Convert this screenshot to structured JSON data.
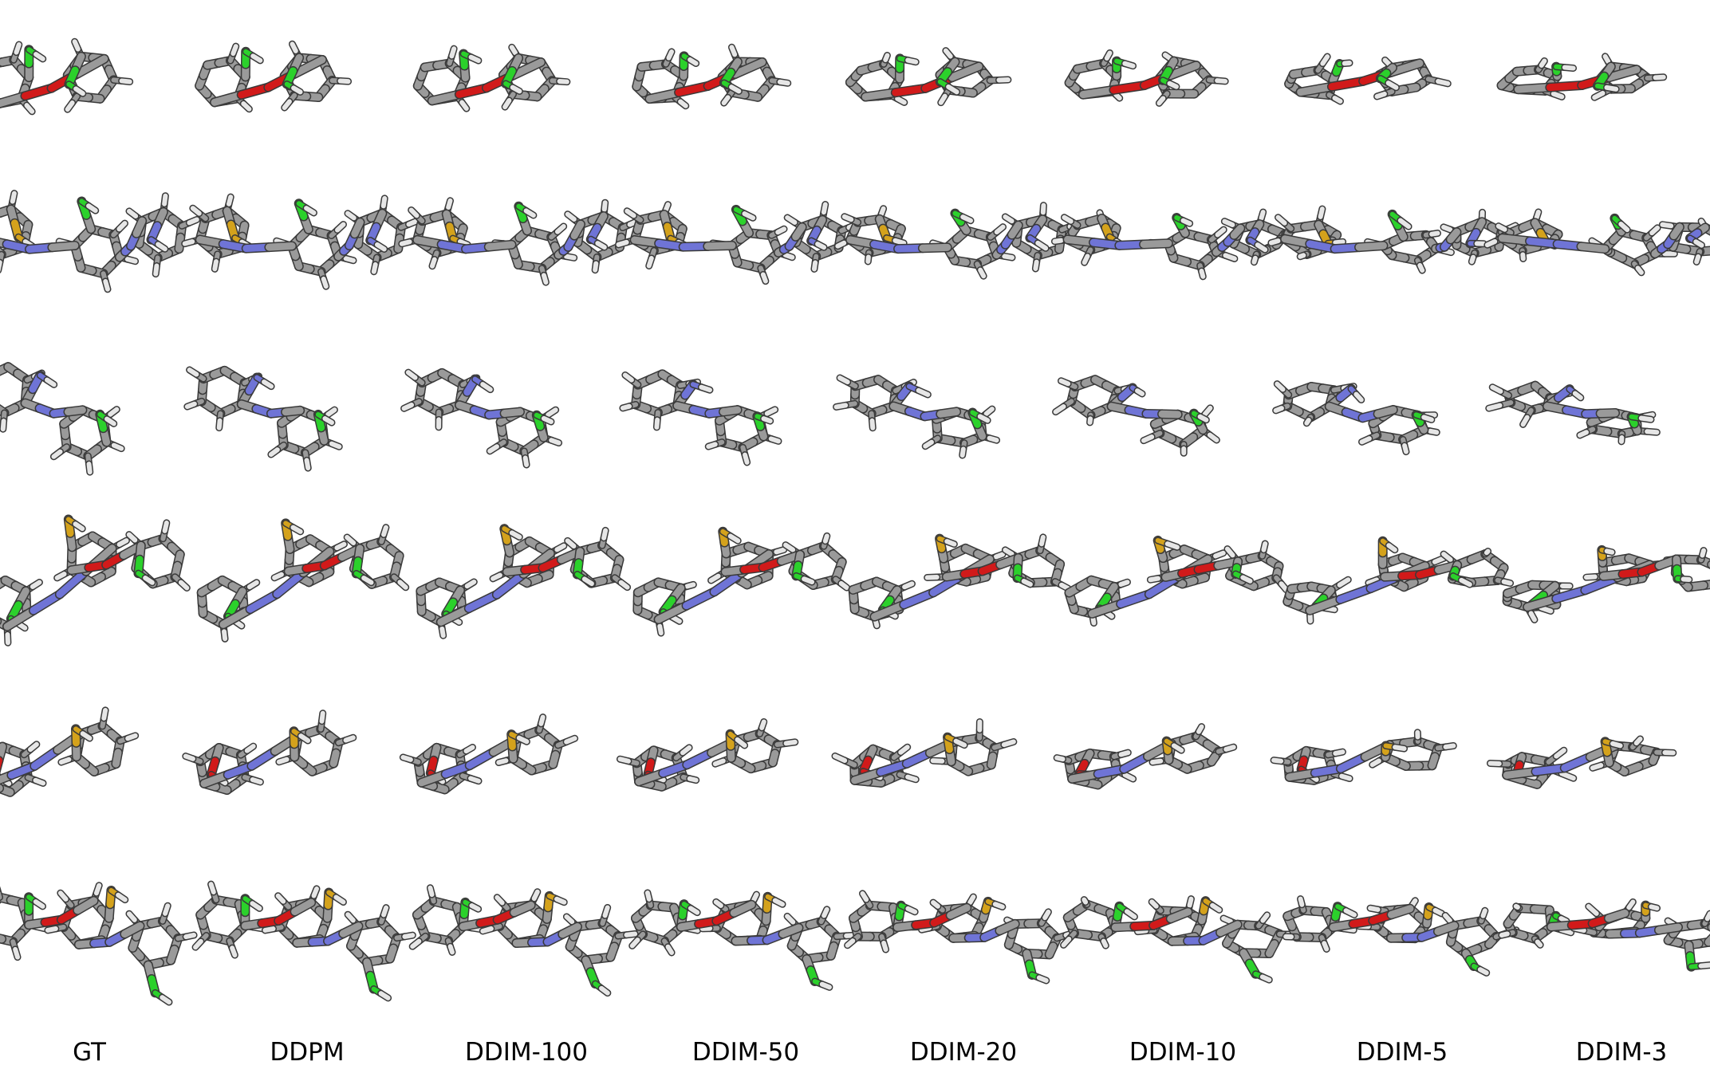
{
  "figure": {
    "columns": [
      "GT",
      "DDPM",
      "DDIM-100",
      "DDIM-50",
      "DDIM-20",
      "DDIM-10",
      "DDIM-5",
      "DDIM-3"
    ],
    "rows": 6,
    "row_content": "3D stick renderings of molecular conformers",
    "atom_colors": {
      "carbon": "#9a9a9a",
      "hydrogen": "#e6e6e6",
      "nitrogen": "#6f74d6",
      "oxygen": "#d11a1a",
      "sulfur": "#d4a21c",
      "chlorine": "#2bd12b"
    },
    "notes": "Conformer geometry progressively flattens / distorts from DDIM-100 to DDIM-3"
  }
}
